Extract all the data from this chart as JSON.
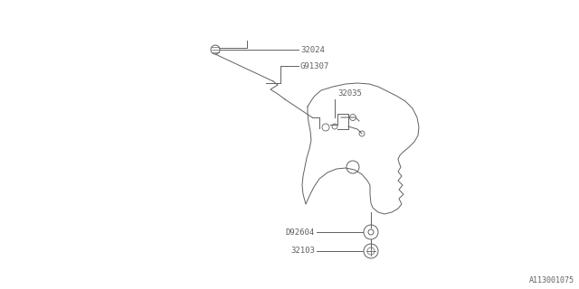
{
  "background_color": "#ffffff",
  "line_color": "#606060",
  "text_color": "#606060",
  "watermark": "A113001075",
  "fig_w": 6.4,
  "fig_h": 3.2,
  "dpi": 100
}
